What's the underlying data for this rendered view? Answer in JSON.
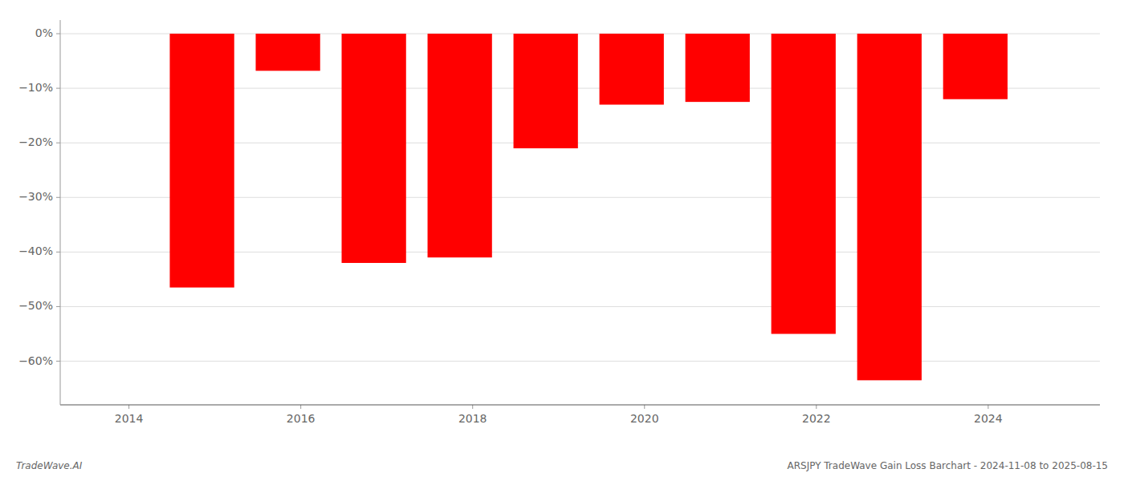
{
  "chart_data": {
    "type": "bar",
    "x": [
      2014.85,
      2015.85,
      2016.85,
      2017.85,
      2018.85,
      2019.85,
      2020.85,
      2021.85,
      2022.85,
      2023.85
    ],
    "values": [
      -46.5,
      -6.8,
      -42.0,
      -41.0,
      -21.0,
      -13.0,
      -12.5,
      -55.0,
      -63.5,
      -12.0
    ],
    "color": "#ff0000",
    "xlim": [
      2013.2,
      2025.3
    ],
    "xticks": [
      2014,
      2016,
      2018,
      2020,
      2022,
      2024
    ],
    "ylim": [
      -68,
      2.5
    ],
    "yticks": [
      {
        "value": 0,
        "label": "0%"
      },
      {
        "value": -10,
        "label": "−10%"
      },
      {
        "value": -20,
        "label": "−20%"
      },
      {
        "value": -30,
        "label": "−30%"
      },
      {
        "value": -40,
        "label": "−40%"
      },
      {
        "value": -50,
        "label": "−50%"
      },
      {
        "value": -60,
        "label": "−60%"
      }
    ],
    "grid": true,
    "annotations": [
      "TradeWave.AI",
      "ARSJPY TradeWave Gain Loss Barchart - 2024-11-08 to 2025-08-15"
    ]
  }
}
